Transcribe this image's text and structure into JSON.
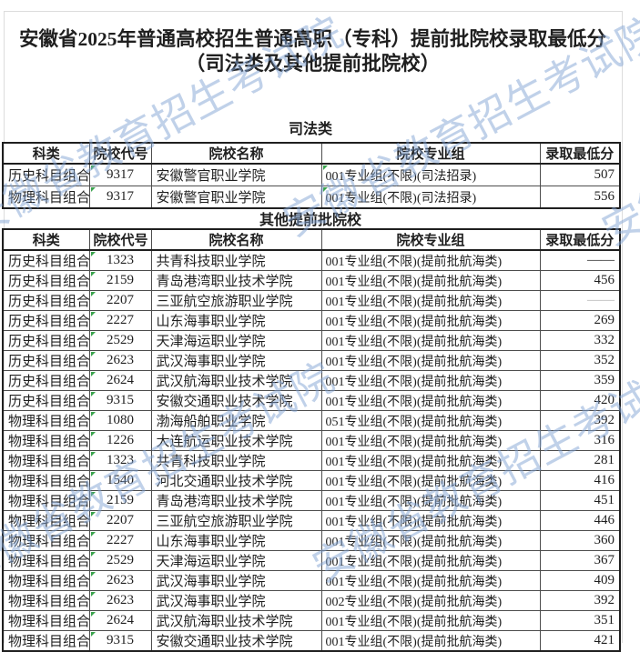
{
  "page": {
    "title_line1": "安徽省2025年普通高校招生普通高职（专科）提前批院校录取最低分",
    "title_line2": "（司法类及其他提前批院校）",
    "watermark_text": "安徽省教育招生考试院",
    "watermark_color": "#82a4d3",
    "flag_color": "#3aa34d"
  },
  "columns": [
    "科类",
    "院校代号",
    "院校名称",
    "院校专业组",
    "录取最低分"
  ],
  "column_names": [
    "subject-category",
    "college-code",
    "college-name",
    "college-major-group",
    "min-admission-score"
  ],
  "sections": [
    {
      "label": "司法类",
      "flag_columns": [
        1,
        3
      ],
      "rows": [
        {
          "subject": "历史科目组合",
          "code": "9317",
          "name": "安徽警官职业学院",
          "group": "001专业组(不限)(司法招录)",
          "score": "507"
        },
        {
          "subject": "物理科目组合",
          "code": "9317",
          "name": "安徽警官职业学院",
          "group": "001专业组(不限)(司法招录)",
          "score": "556"
        }
      ]
    },
    {
      "label": "其他提前批院校",
      "flag_columns": [
        1
      ],
      "rows": [
        {
          "subject": "历史科目组合",
          "code": "1323",
          "name": "共青科技职业学院",
          "group": "001专业组(不限)(提前批航海类)",
          "score": "——"
        },
        {
          "subject": "历史科目组合",
          "code": "2159",
          "name": "青岛港湾职业技术学院",
          "group": "001专业组(不限)(提前批航海类)",
          "score": "456"
        },
        {
          "subject": "历史科目组合",
          "code": "2207",
          "name": "三亚航空旅游职业学院",
          "group": "001专业组(不限)(提前批航海类)",
          "score": "——",
          "muted": true
        },
        {
          "subject": "历史科目组合",
          "code": "2227",
          "name": "山东海事职业学院",
          "group": "001专业组(不限)(提前批航海类)",
          "score": "269"
        },
        {
          "subject": "历史科目组合",
          "code": "2529",
          "name": "天津海运职业学院",
          "group": "001专业组(不限)(提前批航海类)",
          "score": "332"
        },
        {
          "subject": "历史科目组合",
          "code": "2623",
          "name": "武汉海事职业学院",
          "group": "001专业组(不限)(提前批航海类)",
          "score": "352"
        },
        {
          "subject": "历史科目组合",
          "code": "2624",
          "name": "武汉航海职业技术学院",
          "group": "001专业组(不限)(提前批航海类)",
          "score": "359"
        },
        {
          "subject": "历史科目组合",
          "code": "9315",
          "name": "安徽交通职业技术学院",
          "group": "001专业组(不限)(提前批航海类)",
          "score": "420"
        },
        {
          "subject": "物理科目组合",
          "code": "1080",
          "name": "渤海船舶职业学院",
          "group": "051专业组(不限)(提前批航海类)",
          "score": "392"
        },
        {
          "subject": "物理科目组合",
          "code": "1226",
          "name": "大连航运职业技术学院",
          "group": "001专业组(不限)(提前批航海类)",
          "score": "316"
        },
        {
          "subject": "物理科目组合",
          "code": "1323",
          "name": "共青科技职业学院",
          "group": "001专业组(不限)(提前批航海类)",
          "score": "281"
        },
        {
          "subject": "物理科目组合",
          "code": "1540",
          "name": "河北交通职业技术学院",
          "group": "001专业组(不限)(提前批航海类)",
          "score": "416"
        },
        {
          "subject": "物理科目组合",
          "code": "2159",
          "name": "青岛港湾职业技术学院",
          "group": "001专业组(不限)(提前批航海类)",
          "score": "451"
        },
        {
          "subject": "物理科目组合",
          "code": "2207",
          "name": "三亚航空旅游职业学院",
          "group": "001专业组(不限)(提前批航海类)",
          "score": "446"
        },
        {
          "subject": "物理科目组合",
          "code": "2227",
          "name": "山东海事职业学院",
          "group": "001专业组(不限)(提前批航海类)",
          "score": "360"
        },
        {
          "subject": "物理科目组合",
          "code": "2529",
          "name": "天津海运职业学院",
          "group": "001专业组(不限)(提前批航海类)",
          "score": "367"
        },
        {
          "subject": "物理科目组合",
          "code": "2623",
          "name": "武汉海事职业学院",
          "group": "001专业组(不限)(提前批航海类)",
          "score": "409"
        },
        {
          "subject": "物理科目组合",
          "code": "2623",
          "name": "武汉海事职业学院",
          "group": "002专业组(不限)(提前批航海类)",
          "score": "392"
        },
        {
          "subject": "物理科目组合",
          "code": "2624",
          "name": "武汉航海职业技术学院",
          "group": "001专业组(不限)(提前批航海类)",
          "score": "351"
        },
        {
          "subject": "物理科目组合",
          "code": "9315",
          "name": "安徽交通职业技术学院",
          "group": "001专业组(不限)(提前批航海类)",
          "score": "421"
        }
      ]
    }
  ]
}
